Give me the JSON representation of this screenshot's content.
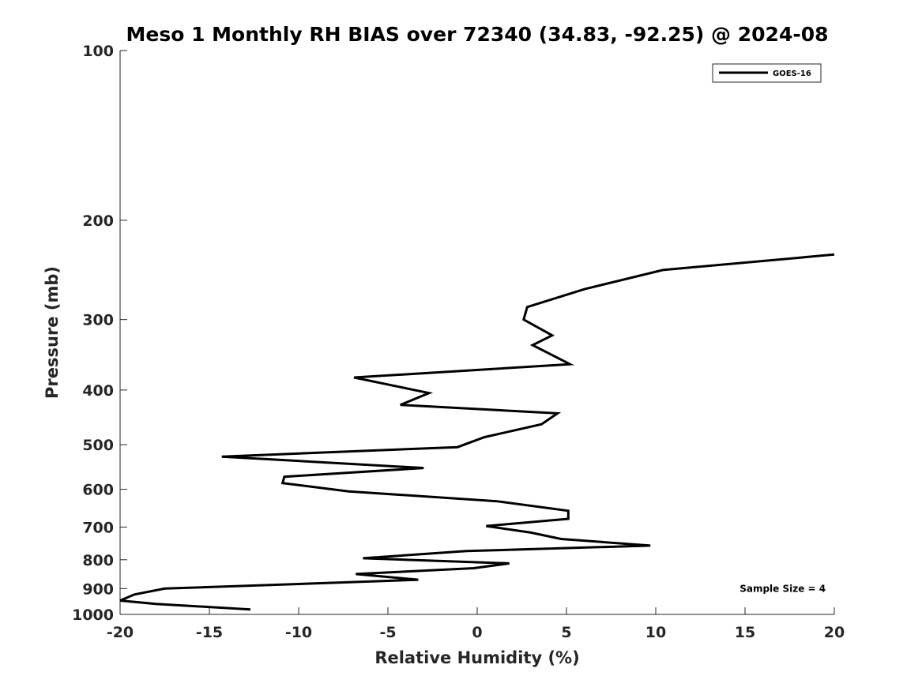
{
  "chart_data": {
    "type": "line",
    "title": "Meso 1 Monthly RH BIAS over 72340 (34.83, -92.25) @ 2024-08",
    "xlabel": "Relative Humidity (%)",
    "ylabel": "Pressure (mb)",
    "xlim": [
      -20,
      20
    ],
    "ylim": [
      100,
      1000
    ],
    "yscale": "log",
    "y_reversed": true,
    "grid": false,
    "legend_position": "top-right",
    "x_ticks": [
      -20,
      -15,
      -10,
      -5,
      0,
      5,
      10,
      15,
      20
    ],
    "x_tick_labels": [
      "-20",
      "-15",
      "-10",
      "-5",
      "0",
      "5",
      "10",
      "15",
      "20"
    ],
    "y_ticks": [
      100,
      200,
      300,
      400,
      500,
      600,
      700,
      800,
      900,
      1000
    ],
    "y_tick_labels": [
      "100",
      "200",
      "300",
      "400",
      "500",
      "600",
      "700",
      "800",
      "900",
      "1000"
    ],
    "series": [
      {
        "name": "GOES-16",
        "color": "#000000",
        "x": [
          20,
          10.4,
          6,
          2.8,
          2.6,
          4.2,
          3.1,
          5.2,
          -6.9,
          -2.7,
          -4.3,
          4.5,
          3.6,
          0.4,
          -1.1,
          -14.3,
          -3,
          -10.8,
          -10.9,
          -7.2,
          1.1,
          5.1,
          5.1,
          0.5,
          3,
          4.7,
          9.7,
          -0.6,
          -6.4,
          1.8,
          -0.2,
          -6.8,
          -3.3,
          -8.6,
          -17.5,
          -19.2,
          -20,
          -18,
          -12.7
        ],
        "y": [
          230,
          245,
          265,
          285,
          300,
          320,
          333,
          360,
          380,
          405,
          425,
          440,
          460,
          485,
          505,
          525,
          550,
          570,
          585,
          605,
          630,
          655,
          677,
          697,
          716,
          735,
          755,
          772,
          795,
          812,
          828,
          848,
          868,
          880,
          900,
          922,
          945,
          958,
          980
        ]
      }
    ],
    "annotations": [
      {
        "text": "Sample Size = 4",
        "x": 14.7,
        "y": 900
      }
    ]
  }
}
